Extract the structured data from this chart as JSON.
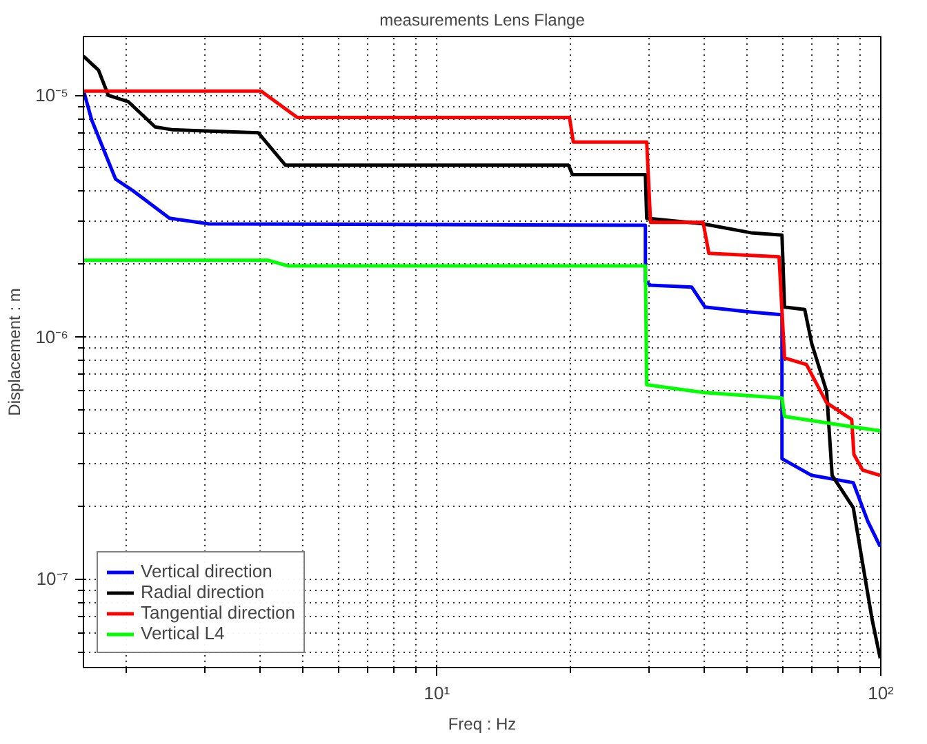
{
  "chart_data": {
    "type": "line",
    "title": "measurements Lens Flange",
    "xlabel": "Freq : Hz",
    "ylabel": "Displacement : m",
    "log": "xy",
    "grid": true,
    "legend": "bottom left",
    "line_style": "solid",
    "xlim": [
      1.6,
      100
    ],
    "xticks": [
      {
        "value": 10,
        "label": "10¹"
      },
      {
        "value": 100,
        "label": "10²"
      }
    ],
    "ylim": [
      4.3e-08,
      1.75e-05
    ],
    "yticks": [
      {
        "value": 1e-07,
        "label": "10⁻⁷"
      },
      {
        "value": 1e-06,
        "label": "10⁻⁶"
      },
      {
        "value": 1e-05,
        "label": "10⁻⁵"
      }
    ],
    "series": [
      {
        "name": "Vertical direction",
        "color": "#0000ff",
        "x": [
          1.6,
          1.67,
          1.89,
          2.06,
          2.5,
          3.07,
          29.5,
          29.5,
          30.3,
          37.5,
          40.2,
          51,
          59,
          59.9,
          59.9,
          69.9,
          86.7,
          93.5,
          99.7
        ],
        "values": [
          1.05e-05,
          7.9e-06,
          4.5e-06,
          4.05e-06,
          3.1e-06,
          2.94e-06,
          2.9e-06,
          1.7e-06,
          1.64e-06,
          1.61e-06,
          1.33e-06,
          1.27e-06,
          1.24e-06,
          1.24e-06,
          3.14e-07,
          2.68e-07,
          2.5e-07,
          1.73e-07,
          1.36e-07
        ]
      },
      {
        "name": "Radial direction",
        "color": "#000000",
        "x": [
          1.6,
          1.73,
          1.82,
          2.02,
          2.32,
          2.54,
          3.96,
          4.56,
          19.8,
          20.2,
          29.5,
          29.7,
          39.8,
          51,
          59.9,
          60.7,
          67.4,
          69.9,
          75.5,
          77.7,
          86.7,
          91,
          95.6,
          99.7
        ],
        "values": [
          1.45e-05,
          1.27e-05,
          1e-05,
          9.4e-06,
          7.4e-06,
          7.2e-06,
          7e-06,
          5.14e-06,
          5.14e-06,
          4.7e-06,
          4.7e-06,
          3.1e-06,
          2.94e-06,
          2.7e-06,
          2.64e-06,
          1.33e-06,
          1.3e-06,
          9.4e-07,
          5.96e-07,
          2.68e-07,
          1.97e-07,
          1.16e-07,
          6.8e-08,
          4.7e-08
        ]
      },
      {
        "name": "Tangential direction",
        "color": "#ff0000",
        "x": [
          1.6,
          4.02,
          4.85,
          19.9,
          20.3,
          29.7,
          30.3,
          39.8,
          41,
          59,
          60.7,
          68,
          75.5,
          86,
          87,
          91,
          99.7
        ],
        "values": [
          1.04e-05,
          1.04e-05,
          8.1e-06,
          8.1e-06,
          6.4e-06,
          6.4e-06,
          2.98e-06,
          2.98e-06,
          2.22e-06,
          2.15e-06,
          8.2e-07,
          7.7e-07,
          5.35e-07,
          4.56e-07,
          3.27e-07,
          2.82e-07,
          2.68e-07
        ]
      },
      {
        "name": "Vertical L4",
        "color": "#00ff00",
        "x": [
          1.6,
          4.16,
          4.62,
          29.5,
          29.7,
          39.8,
          59.9,
          60.7,
          86.7,
          99.7
        ],
        "values": [
          2.08e-06,
          2.08e-06,
          1.97e-06,
          1.97e-06,
          6.35e-07,
          5.9e-07,
          5.6e-07,
          4.7e-07,
          4.25e-07,
          4.1e-07
        ]
      }
    ]
  }
}
